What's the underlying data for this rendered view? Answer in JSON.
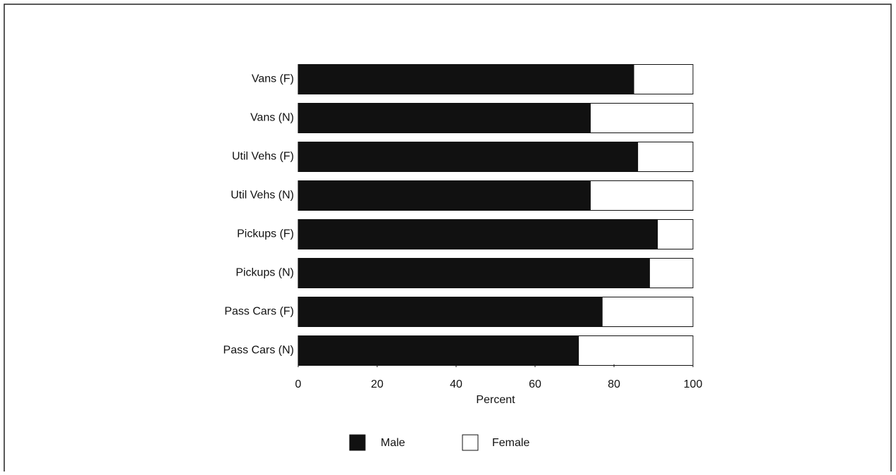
{
  "chart_data": {
    "type": "stacked-barh",
    "categories": [
      "Vans (F)",
      "Vans (N)",
      "Util Vehs (F)",
      "Util Vehs (N)",
      "Pickups (F)",
      "Pickups (N)",
      "Pass Cars (F)",
      "Pass Cars (N)"
    ],
    "series": [
      {
        "name": "Male",
        "color": "#111111",
        "values": [
          85,
          74,
          86,
          74,
          91,
          89,
          77,
          71
        ]
      },
      {
        "name": "Female",
        "color": "#ffffff",
        "values": [
          15,
          26,
          14,
          26,
          9,
          11,
          23,
          29
        ]
      }
    ],
    "xlabel": "Percent",
    "xlim": [
      0,
      100
    ],
    "xticks": [
      0,
      20,
      40,
      60,
      80,
      100
    ],
    "grid": false,
    "legend": "bottom"
  }
}
